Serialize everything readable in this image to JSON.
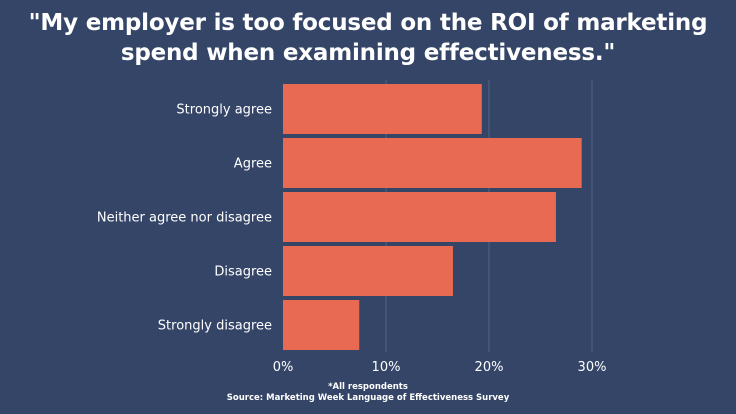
{
  "chart_data": {
    "type": "bar",
    "orientation": "horizontal",
    "title_lines": [
      "\"My employer is too focused on the ROI of marketing",
      "spend when examining effectiveness.\""
    ],
    "categories": [
      "Strongly agree",
      "Agree",
      "Neither agree nor disagree",
      "Disagree",
      "Strongly disagree"
    ],
    "values": [
      19.3,
      29,
      26.5,
      16.5,
      7.4
    ],
    "x_ticks": [
      "0%",
      "10%",
      "20%",
      "30%"
    ],
    "xlim": [
      0,
      30
    ],
    "grid": true,
    "xlabel": "",
    "ylabel": ""
  },
  "footnote": {
    "note": "*All respondents",
    "source": "Source: Marketing Week Language of Effectiveness Survey"
  },
  "colors": {
    "background": "#344567",
    "bar": "#E96A52",
    "grid": "#55657f",
    "text": "#ffffff"
  }
}
